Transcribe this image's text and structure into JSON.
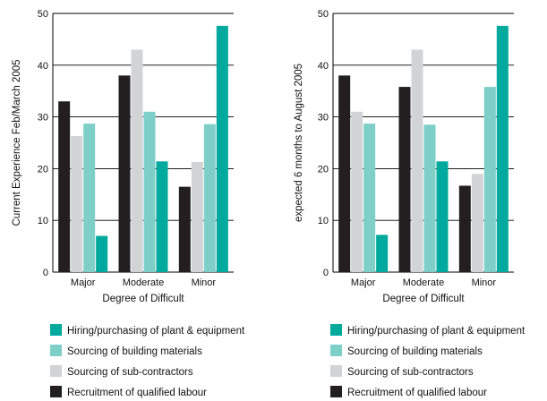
{
  "chart_data": [
    {
      "type": "bar",
      "ylabel": "Current Experience Feb/March 2005",
      "xlabel": "Degree of Difficult",
      "categories": [
        "Major",
        "Moderate",
        "Minor"
      ],
      "ylim": [
        0,
        50
      ],
      "yticks": [
        "0",
        "10",
        "20",
        "30",
        "40",
        "50"
      ],
      "grid": true,
      "series": [
        {
          "name": "Recruitment of qualified labour",
          "values": [
            33,
            38,
            16.5
          ],
          "color": "#231f20"
        },
        {
          "name": "Sourcing of sub-contractors",
          "values": [
            26.3,
            43,
            21.3
          ],
          "color": "#d1d3d4"
        },
        {
          "name": "Sourcing of building materials",
          "values": [
            28.7,
            31,
            28.6
          ],
          "color": "#7fcfc9"
        },
        {
          "name": "Hiring/purchasing of plant & equipment",
          "values": [
            7,
            21.4,
            47.6
          ],
          "color": "#00a99d"
        }
      ]
    },
    {
      "type": "bar",
      "ylabel": "expected 6 months to August 2005",
      "xlabel": "Degree of Difficult",
      "categories": [
        "Major",
        "Moderate",
        "Minor"
      ],
      "ylim": [
        0,
        50
      ],
      "yticks": [
        "0",
        "10",
        "20",
        "30",
        "40",
        "50"
      ],
      "grid": true,
      "series": [
        {
          "name": "Recruitment of qualified labour",
          "values": [
            38,
            35.8,
            16.7
          ],
          "color": "#231f20"
        },
        {
          "name": "Sourcing of sub-contractors",
          "values": [
            31,
            43,
            19
          ],
          "color": "#d1d3d4"
        },
        {
          "name": "Sourcing of building materials",
          "values": [
            28.7,
            28.5,
            35.8
          ],
          "color": "#7fcfc9"
        },
        {
          "name": "Hiring/purchasing of plant & equipment",
          "values": [
            7.2,
            21.4,
            47.6
          ],
          "color": "#00a99d"
        }
      ]
    }
  ],
  "legend": {
    "items": [
      {
        "label": "Hiring/purchasing of plant & equipment",
        "color": "#00a99d",
        "icon": "swatch-teal"
      },
      {
        "label": "Sourcing of building materials",
        "color": "#7fcfc9",
        "icon": "swatch-light-teal"
      },
      {
        "label": "Sourcing of sub-contractors",
        "color": "#d1d3d4",
        "icon": "swatch-light-grey"
      },
      {
        "label": "Recruitment of qualified labour",
        "color": "#231f20",
        "icon": "swatch-black"
      }
    ]
  }
}
